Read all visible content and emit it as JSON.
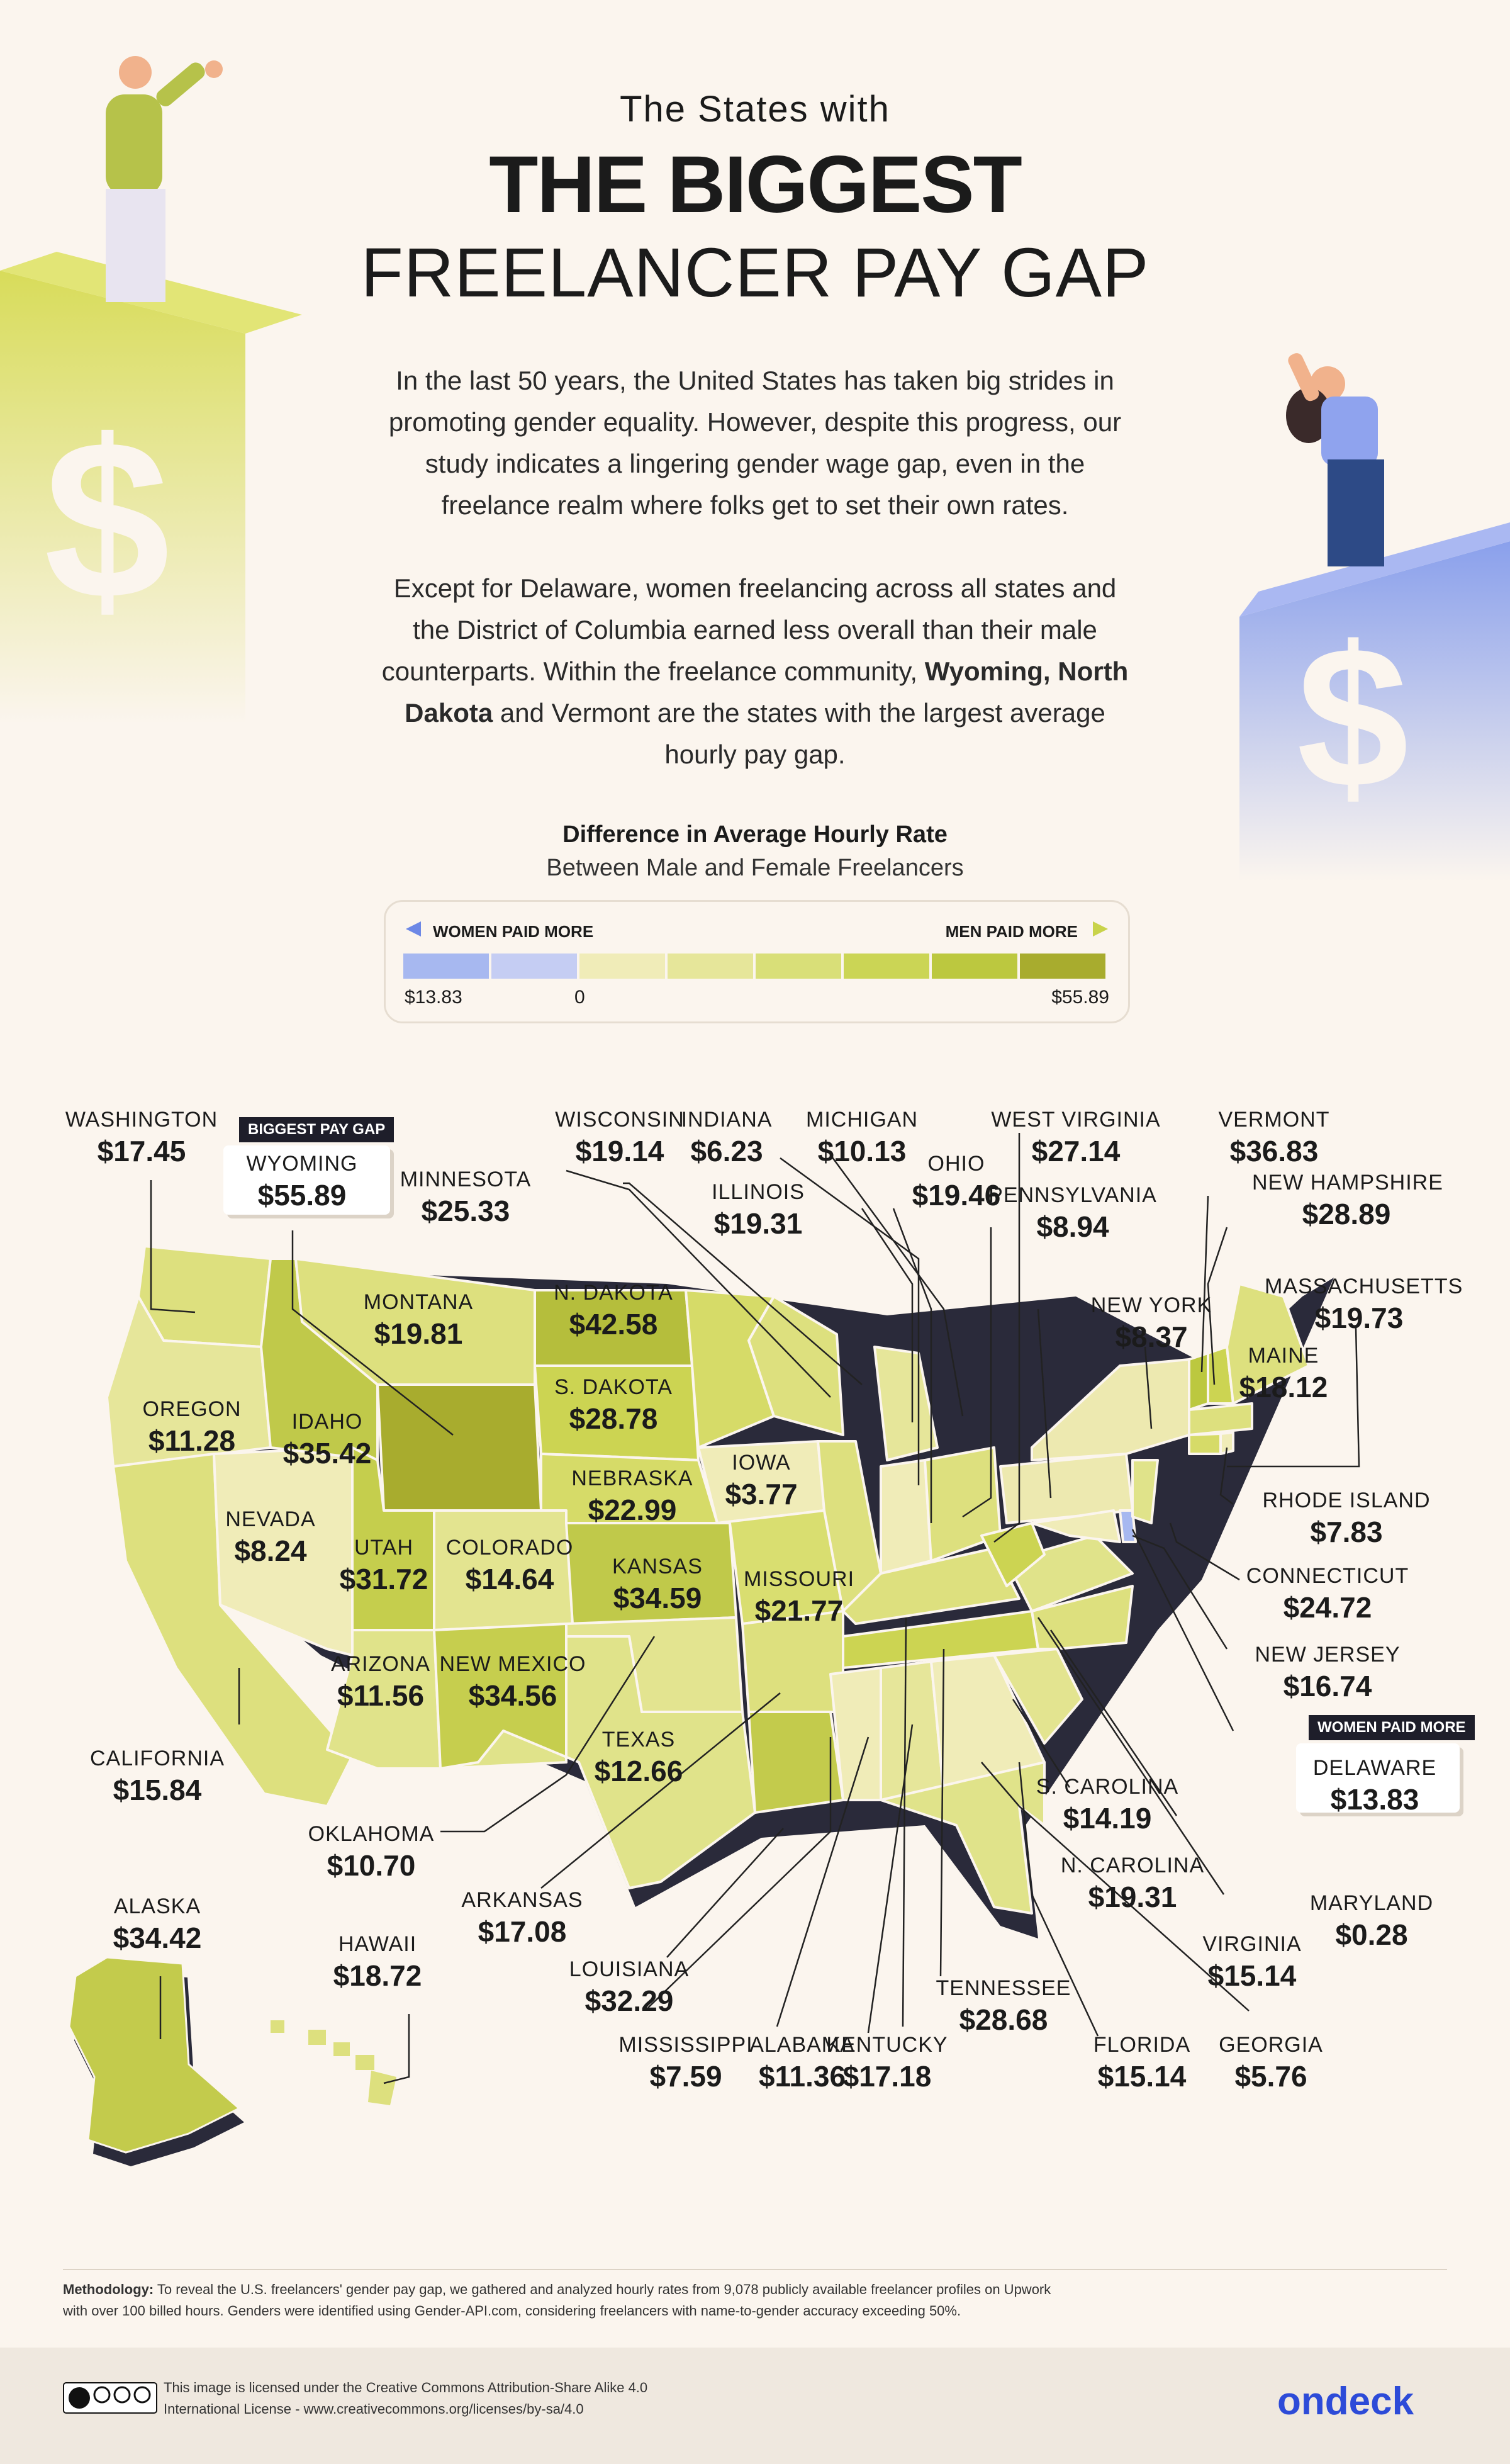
{
  "title": {
    "top": "The States with",
    "main": "THE BIGGEST",
    "bottom": "FREELANCER PAY GAP"
  },
  "intro": {
    "p1_lines": [
      "In the last 50 years, the United States has taken big strides in",
      "promoting gender equality. However, despite this progress, our",
      "study indicates a lingering gender wage gap, even in the",
      "freelance realm where folks get to set their own rates."
    ],
    "p2_lines": [
      "Except for Delaware, women freelancing across all states and",
      "the District of Columbia earned less overall than their male",
      "counterparts. Within the freelance community,"
    ],
    "p2_bold": "Wyoming, North",
    "p2_bold2": "Dakota",
    "p2_rest": " and Vermont are the states with the largest average",
    "p2_last": "hourly pay gap."
  },
  "legend": {
    "title": "Difference in Average Hourly Rate",
    "subtitle": "Between Male and Female Freelancers",
    "left_label": "WOMEN PAID MORE",
    "right_label": "MEN PAID MORE",
    "min": "$13.83",
    "zero": "0",
    "max": "$55.89",
    "colors": [
      "#a7b8f0",
      "#c5cdf3",
      "#f0ecb8",
      "#e6e69a",
      "#d9df78",
      "#cbd555",
      "#bcc83f",
      "#a8ac2e"
    ]
  },
  "badges": {
    "biggest": "BIGGEST PAY GAP",
    "women": "WOMEN PAID MORE"
  },
  "states": [
    {
      "name": "WASHINGTON",
      "value": "$17.45"
    },
    {
      "name": "WYOMING",
      "value": "$55.89"
    },
    {
      "name": "MINNESOTA",
      "value": "$25.33"
    },
    {
      "name": "WISCONSIN",
      "value": "$19.14"
    },
    {
      "name": "INDIANA",
      "value": "$6.23"
    },
    {
      "name": "MICHIGAN",
      "value": "$10.13"
    },
    {
      "name": "WEST VIRGINIA",
      "value": "$27.14"
    },
    {
      "name": "VERMONT",
      "value": "$36.83"
    },
    {
      "name": "ILLINOIS",
      "value": "$19.31"
    },
    {
      "name": "OHIO",
      "value": "$19.46"
    },
    {
      "name": "PENNSYLVANIA",
      "value": "$8.94"
    },
    {
      "name": "NEW HAMPSHIRE",
      "value": "$28.89"
    },
    {
      "name": "MASSACHUSETTS",
      "value": "$19.73"
    },
    {
      "name": "MONTANA",
      "value": "$19.81"
    },
    {
      "name": "N. DAKOTA",
      "value": "$42.58"
    },
    {
      "name": "NEW YORK",
      "value": "$8.37"
    },
    {
      "name": "MAINE",
      "value": "$18.12"
    },
    {
      "name": "OREGON",
      "value": "$11.28"
    },
    {
      "name": "IDAHO",
      "value": "$35.42"
    },
    {
      "name": "S. DAKOTA",
      "value": "$28.78"
    },
    {
      "name": "IOWA",
      "value": "$3.77"
    },
    {
      "name": "RHODE ISLAND",
      "value": "$7.83"
    },
    {
      "name": "NEVADA",
      "value": "$8.24"
    },
    {
      "name": "NEBRASKA",
      "value": "$22.99"
    },
    {
      "name": "UTAH",
      "value": "$31.72"
    },
    {
      "name": "COLORADO",
      "value": "$14.64"
    },
    {
      "name": "KANSAS",
      "value": "$34.59"
    },
    {
      "name": "MISSOURI",
      "value": "$21.77"
    },
    {
      "name": "CONNECTICUT",
      "value": "$24.72"
    },
    {
      "name": "ARIZONA",
      "value": "$11.56"
    },
    {
      "name": "NEW MEXICO",
      "value": "$34.56"
    },
    {
      "name": "NEW JERSEY",
      "value": "$16.74"
    },
    {
      "name": "CALIFORNIA",
      "value": "$15.84"
    },
    {
      "name": "TEXAS",
      "value": "$12.66"
    },
    {
      "name": "DELAWARE",
      "value": "$13.83"
    },
    {
      "name": "S. CAROLINA",
      "value": "$14.19"
    },
    {
      "name": "OKLAHOMA",
      "value": "$10.70"
    },
    {
      "name": "N. CAROLINA",
      "value": "$19.31"
    },
    {
      "name": "MARYLAND",
      "value": "$0.28"
    },
    {
      "name": "ARKANSAS",
      "value": "$17.08"
    },
    {
      "name": "VIRGINIA",
      "value": "$15.14"
    },
    {
      "name": "ALASKA",
      "value": "$34.42"
    },
    {
      "name": "HAWAII",
      "value": "$18.72"
    },
    {
      "name": "LOUISIANA",
      "value": "$32.29"
    },
    {
      "name": "TENNESSEE",
      "value": "$28.68"
    },
    {
      "name": "MISSISSIPPI",
      "value": "$7.59"
    },
    {
      "name": "ALABAMA",
      "value": "$11.36"
    },
    {
      "name": "KENTUCKY",
      "value": "$17.18"
    },
    {
      "name": "FLORIDA",
      "value": "$15.14"
    },
    {
      "name": "GEORGIA",
      "value": "$5.76"
    }
  ],
  "methodology": {
    "label": "Methodology:",
    "text": " To reveal the U.S. freelancers' gender pay gap, we gathered and analyzed hourly rates from 9,078 publicly available freelancer profiles on Upwork",
    "text2": "with over 100 billed hours. Genders were identified using Gender-API.com, considering freelancers with name-to-gender accuracy exceeding 50%."
  },
  "footer": {
    "license1": "This image is licensed under the Creative Commons Attribution-Share Alike 4.0",
    "license2": "International License - www.creativecommons.org/licenses/by-sa/4.0",
    "brand": "ondeck"
  }
}
